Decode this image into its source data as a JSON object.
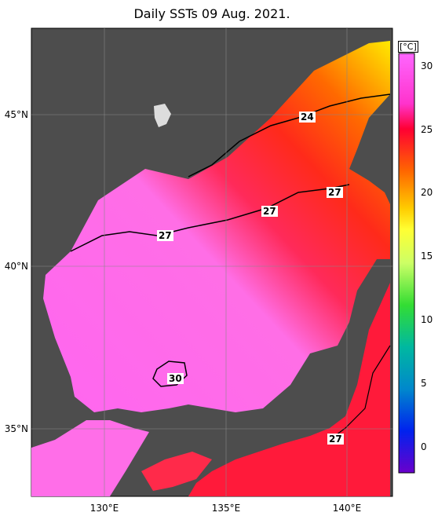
{
  "title": "Daily SSTs 09 Aug. 2021.",
  "lat_labels": [
    "45°N",
    "40°N",
    "35°N"
  ],
  "lon_labels": [
    "130°E",
    "135°E",
    "140°E"
  ],
  "colorbar": {
    "unit": "[°C]",
    "ticks": [
      "30",
      "25",
      "20",
      "15",
      "10",
      "5",
      "0"
    ],
    "colors": [
      "#ff66ff",
      "#ff33cc",
      "#ff0033",
      "#ff6600",
      "#ffcc00",
      "#ffff33",
      "#ccff66",
      "#66ff66",
      "#00cc66",
      "#00aaaa",
      "#0066cc",
      "#0000ff",
      "#6600cc"
    ]
  },
  "contour_labels": [
    "24",
    "27",
    "27",
    "27",
    "30",
    "27"
  ],
  "colors": {
    "land": "#4d4d4d",
    "warm_sea": "#ff7fe0",
    "mid_sea": "#ff2a55",
    "cool_sea": "#ff6a00",
    "cold_sea": "#ffd700"
  }
}
